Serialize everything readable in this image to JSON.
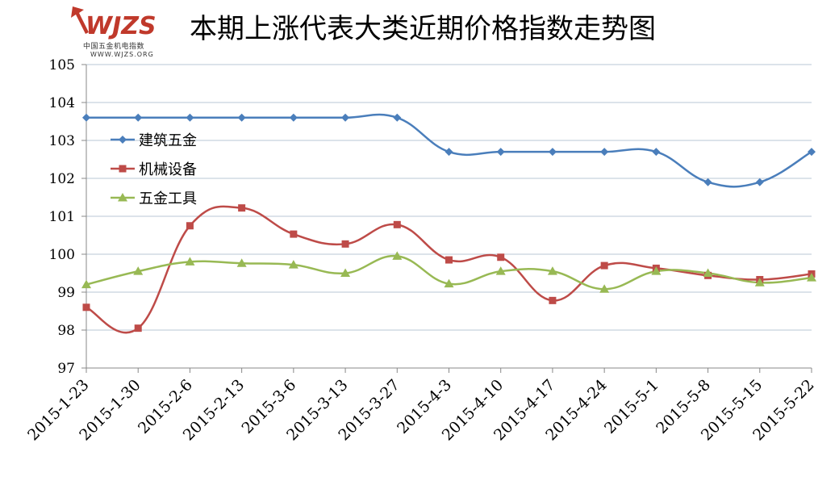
{
  "logo": {
    "brand": "WJZS",
    "subtitle": "中国五金机电指数",
    "url": "WWW.WJZS.ORG",
    "brand_color": "#c0392b"
  },
  "chart_data": {
    "type": "line",
    "title": "本期上涨代表大类近期价格指数走势图",
    "xlabel": "",
    "ylabel": "",
    "ylim": [
      97,
      105
    ],
    "yticks": [
      97,
      98,
      99,
      100,
      101,
      102,
      103,
      104,
      105
    ],
    "grid": true,
    "legend_position": "left-middle",
    "categories": [
      "2015-1-23",
      "2015-1-30",
      "2015-2-6",
      "2015-2-13",
      "2015-3-6",
      "2015-3-13",
      "2015-3-27",
      "2015-4-3",
      "2015-4-10",
      "2015-4-17",
      "2015-4-24",
      "2015-5-1",
      "2015-5-8",
      "2015-5-15",
      "2015-5-22"
    ],
    "series": [
      {
        "name": "建筑五金",
        "color": "#4a7ebb",
        "marker": "diamond",
        "values": [
          103.6,
          103.6,
          103.6,
          103.6,
          103.6,
          103.6,
          103.6,
          102.7,
          102.7,
          102.7,
          102.7,
          102.7,
          101.9,
          101.9,
          102.7
        ]
      },
      {
        "name": "机械设备",
        "color": "#be4b48",
        "marker": "square",
        "values": [
          98.6,
          98.05,
          100.75,
          101.22,
          100.53,
          100.27,
          100.78,
          99.85,
          99.92,
          98.78,
          99.7,
          99.63,
          99.44,
          99.33,
          99.48
        ]
      },
      {
        "name": "五金工具",
        "color": "#98b954",
        "marker": "triangle",
        "values": [
          99.2,
          99.55,
          99.8,
          99.76,
          99.72,
          99.5,
          99.95,
          99.22,
          99.55,
          99.55,
          99.08,
          99.55,
          99.5,
          99.25,
          99.38
        ]
      }
    ]
  }
}
